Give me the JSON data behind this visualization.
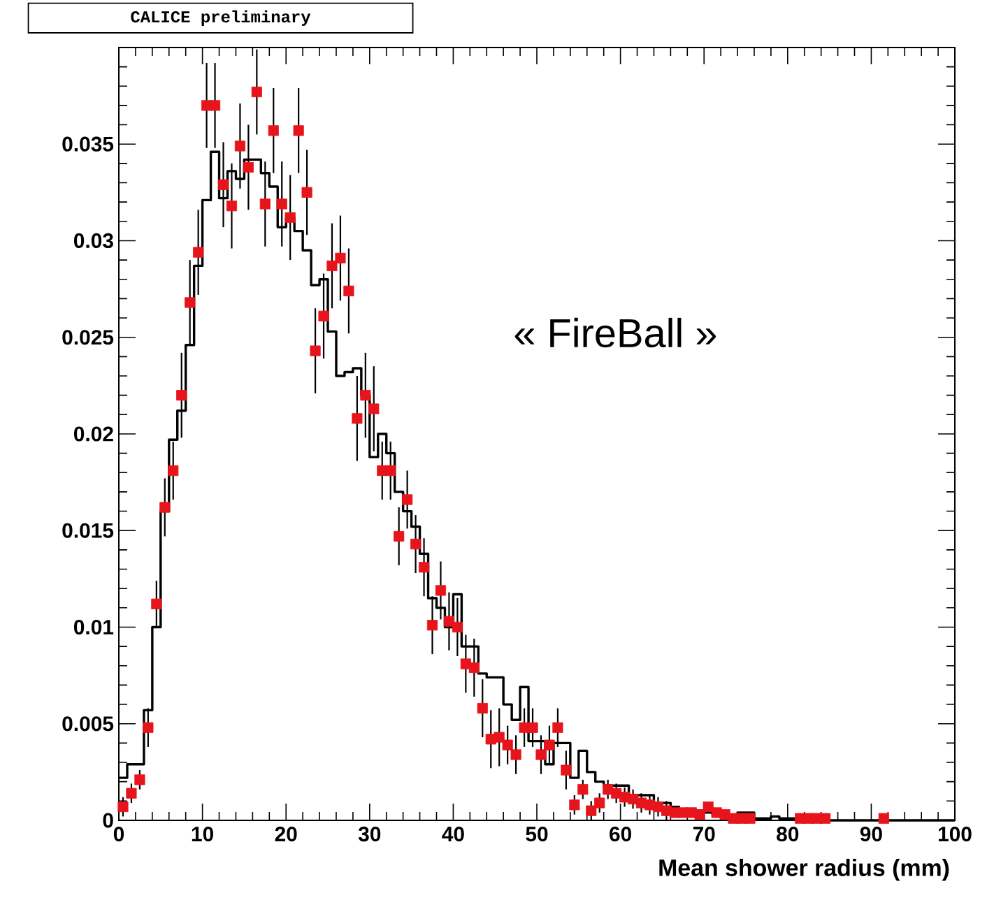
{
  "chart_data": {
    "type": "histogram",
    "xlabel": "Mean shower radius (mm)",
    "annotations": [
      "CALICE preliminary",
      "« FireBall »"
    ],
    "xlim": [
      0,
      100
    ],
    "ylim": [
      0,
      0.04
    ],
    "xticks": [
      0,
      10,
      20,
      30,
      40,
      50,
      60,
      70,
      80,
      90,
      100
    ],
    "yticks": [
      0,
      0.005,
      0.01,
      0.015,
      0.02,
      0.025,
      0.03,
      0.035,
      {
        "value": 0.04,
        "label": null
      }
    ],
    "series": [
      {
        "color": "#000000",
        "bins": [
          0,
          1,
          2,
          3,
          4,
          5,
          6,
          7,
          8,
          9,
          10,
          11,
          12,
          13,
          14,
          15,
          16,
          17,
          18,
          19,
          20,
          21,
          22,
          23,
          24,
          25,
          26,
          27,
          28,
          29,
          30,
          31,
          32,
          33,
          34,
          35,
          36,
          37,
          38,
          39,
          40,
          41,
          42,
          43,
          44,
          45,
          46,
          47,
          48,
          49,
          50,
          51,
          52,
          53,
          54,
          55,
          56,
          57,
          58,
          59,
          60,
          61,
          62,
          63,
          64,
          65,
          66,
          67,
          68,
          69,
          70,
          71,
          72,
          73,
          74,
          75,
          76,
          77,
          78,
          79,
          80,
          81,
          82,
          83,
          84,
          85,
          86,
          87,
          88,
          89,
          90,
          91,
          92,
          93,
          94,
          95,
          96,
          97,
          98,
          99,
          100
        ],
        "values": [
          0.0022,
          0.0029,
          0.0029,
          0.0057,
          0.01,
          0.016,
          0.0197,
          0.0212,
          0.0246,
          0.0287,
          0.0321,
          0.0346,
          0.0322,
          0.0336,
          0.0332,
          0.0342,
          0.0342,
          0.0335,
          0.0328,
          0.0307,
          0.0312,
          0.0305,
          0.0295,
          0.0277,
          0.028,
          0.0253,
          0.023,
          0.0232,
          0.0234,
          0.022,
          0.0188,
          0.02,
          0.019,
          0.017,
          0.016,
          0.0152,
          0.0138,
          0.0115,
          0.011,
          0.01,
          0.0117,
          0.009,
          0.009,
          0.0076,
          0.0074,
          0.0074,
          0.006,
          0.0052,
          0.0069,
          0.0041,
          0.0041,
          0.0029,
          0.004,
          0.004,
          0.0022,
          0.0036,
          0.0025,
          0.002,
          0.0018,
          0.0018,
          0.0018,
          0.0013,
          0.0013,
          0.0013,
          0.0009,
          0.0009,
          0.0007,
          0.0005,
          0.0005,
          0.0005,
          0.0004,
          0.0003,
          0.0003,
          0.0003,
          0.0004,
          0.0004,
          0.0001,
          0.0001,
          0.0002,
          0.0001,
          0.0001,
          0.0001,
          0,
          0,
          0,
          0,
          0,
          0,
          0,
          0,
          0,
          0,
          0,
          0,
          0,
          0,
          0,
          0,
          0,
          0
        ]
      },
      {
        "type": "scatter",
        "color": "#e8141c",
        "marker": "square",
        "x": [
          0.5,
          1.5,
          2.5,
          3.5,
          4.5,
          5.5,
          6.5,
          7.5,
          8.5,
          9.5,
          10.5,
          11.5,
          12.5,
          13.5,
          14.5,
          15.5,
          16.5,
          17.5,
          18.5,
          19.5,
          20.5,
          21.5,
          22.5,
          23.5,
          24.5,
          25.5,
          26.5,
          27.5,
          28.5,
          29.5,
          30.5,
          31.5,
          32.5,
          33.5,
          34.5,
          35.5,
          36.5,
          37.5,
          38.5,
          39.5,
          40.5,
          41.5,
          42.5,
          43.5,
          44.5,
          45.5,
          46.5,
          47.5,
          48.5,
          49.5,
          50.5,
          51.5,
          52.5,
          53.5,
          54.5,
          55.5,
          56.5,
          57.5,
          58.5,
          59.5,
          60.5,
          61.5,
          62.5,
          63.5,
          64.5,
          65.5,
          66.5,
          67.5,
          68.5,
          69.5,
          70.5,
          71.5,
          72.5,
          73.5,
          74.5,
          75.5,
          81.5,
          82.5,
          83.5,
          84.5,
          91.5
        ],
        "values": [
          0.0007,
          0.0014,
          0.0021,
          0.0048,
          0.0112,
          0.0162,
          0.0181,
          0.022,
          0.0268,
          0.0294,
          0.037,
          0.037,
          0.0329,
          0.0318,
          0.0349,
          0.0338,
          0.0377,
          0.0319,
          0.0357,
          0.0319,
          0.0312,
          0.0357,
          0.0325,
          0.0243,
          0.0261,
          0.0287,
          0.0291,
          0.0274,
          0.0208,
          0.022,
          0.0213,
          0.0181,
          0.0181,
          0.0147,
          0.0166,
          0.0143,
          0.0131,
          0.0101,
          0.0119,
          0.0103,
          0.01,
          0.0081,
          0.0079,
          0.0058,
          0.0042,
          0.0043,
          0.0039,
          0.0034,
          0.0048,
          0.0048,
          0.0034,
          0.0039,
          0.0048,
          0.0026,
          0.0008,
          0.0016,
          0.0005,
          0.0009,
          0.0016,
          0.0014,
          0.0012,
          0.0011,
          0.0009,
          0.0008,
          0.0007,
          0.0005,
          0.0004,
          0.0004,
          0.0004,
          0.0003,
          0.0007,
          0.0004,
          0.0003,
          0.0001,
          0.0001,
          0.0001,
          0.0001,
          0.0001,
          0.0001,
          0.0001,
          0.0001
        ],
        "errors": [
          0.0005,
          0.0005,
          0.0005,
          0.001,
          0.0012,
          0.0015,
          0.0015,
          0.0022,
          0.0022,
          0.0022,
          0.0022,
          0.0022,
          0.0022,
          0.0022,
          0.0022,
          0.0022,
          0.0022,
          0.0022,
          0.0022,
          0.0022,
          0.0022,
          0.0022,
          0.0022,
          0.0022,
          0.0022,
          0.0022,
          0.0022,
          0.0022,
          0.0022,
          0.0022,
          0.0022,
          0.0015,
          0.0015,
          0.0015,
          0.0015,
          0.0015,
          0.0015,
          0.0015,
          0.0015,
          0.0015,
          0.0015,
          0.0015,
          0.0015,
          0.0015,
          0.0015,
          0.0015,
          0.001,
          0.001,
          0.001,
          0.001,
          0.001,
          0.001,
          0.001,
          0.001,
          0.0005,
          0.0005,
          0.0005,
          0.0005,
          0.0005,
          0.0005,
          0.0005,
          0.0005,
          0.0005,
          0.0005,
          0.0005,
          0.0005,
          null,
          null,
          null,
          null,
          null,
          null,
          null,
          null,
          null,
          null,
          null,
          null,
          null,
          null,
          null
        ]
      }
    ]
  }
}
